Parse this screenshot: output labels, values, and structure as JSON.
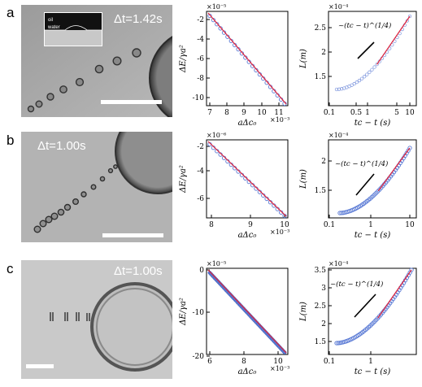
{
  "rows": [
    {
      "label": "a",
      "time": "Δt=1.42s",
      "inset": {
        "oil": "oil",
        "water": "water"
      },
      "energy": {
        "ylabel": "ΔE/γa²",
        "xlabel": "aΔc₀",
        "exp_y": "×10⁻⁵",
        "exp_x": "×10⁻³",
        "yticks": [
          "-2",
          "-4",
          "-6",
          "-8",
          "-10"
        ],
        "xticks": [
          "7",
          "8",
          "9",
          "10",
          "11"
        ]
      },
      "length": {
        "ylabel": "L(m)",
        "xlabel": "tc − t (s)",
        "exp_y": "×10⁻⁴",
        "annotation": "~(tc − t)^(1/4)",
        "yticks": [
          "2.5",
          "2",
          "1.5"
        ],
        "xticks": [
          "0.1",
          "0.5",
          "1",
          "5",
          "10"
        ]
      }
    },
    {
      "label": "b",
      "time": "Δt=1.00s",
      "energy": {
        "ylabel": "ΔE/γa²",
        "xlabel": "aΔc₀",
        "exp_y": "×10⁻⁶",
        "exp_x": "×10⁻³",
        "yticks": [
          "-2",
          "-4",
          "-6"
        ],
        "xticks": [
          "8",
          "9",
          "10"
        ]
      },
      "length": {
        "ylabel": "L(m)",
        "xlabel": "tc − t (s)",
        "exp_y": "×10⁻⁴",
        "annotation": "~(tc − t)^(1/4)",
        "yticks": [
          "2",
          "1.5"
        ],
        "xticks": [
          "0.1",
          "1",
          "10"
        ]
      }
    },
    {
      "label": "c",
      "time": "Δt=1.00s",
      "energy": {
        "ylabel": "ΔE/γa²",
        "xlabel": "aΔc₀",
        "exp_y": "×10⁻⁵",
        "exp_x": "×10⁻³",
        "yticks": [
          "0",
          "-10",
          "-20"
        ],
        "xticks": [
          "6",
          "8",
          "10"
        ]
      },
      "length": {
        "ylabel": "L(m)",
        "xlabel": "tc − t (s)",
        "exp_y": "×10⁻⁴",
        "annotation": "~(tc − t)^(1/4)",
        "yticks": [
          "3.5",
          "3",
          "2.5",
          "2",
          "1.5"
        ],
        "xticks": [
          "0.1",
          "1"
        ]
      }
    }
  ],
  "colors": {
    "data": "#5b7bd5",
    "fit": "#e0213a",
    "frame": "#000000"
  }
}
